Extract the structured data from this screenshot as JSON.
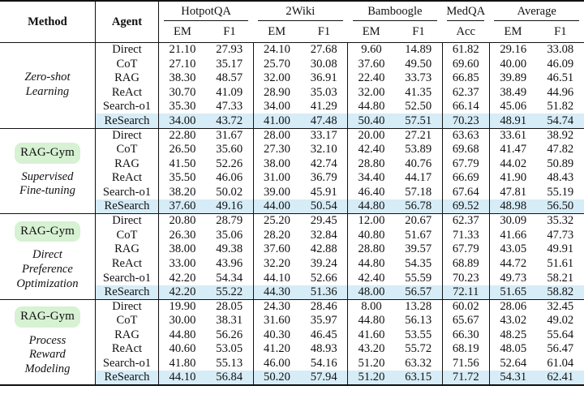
{
  "header": {
    "method": "Method",
    "agent": "Agent",
    "datasets": [
      {
        "name": "HotpotQA",
        "metrics": [
          "EM",
          "F1"
        ]
      },
      {
        "name": "2Wiki",
        "metrics": [
          "EM",
          "F1"
        ]
      },
      {
        "name": "Bamboogle",
        "metrics": [
          "EM",
          "F1"
        ]
      },
      {
        "name": "MedQA",
        "metrics": [
          "Acc"
        ]
      },
      {
        "name": "Average",
        "metrics": [
          "EM",
          "F1"
        ]
      }
    ]
  },
  "groups": [
    {
      "badge": "",
      "method_lines": [
        "Zero-shot",
        "Learning"
      ],
      "rows": [
        {
          "agent": "Direct",
          "values": [
            "21.10",
            "27.93",
            "24.10",
            "27.68",
            "9.60",
            "14.89",
            "61.82",
            "29.16",
            "33.08"
          ],
          "bold": [],
          "highlight": false
        },
        {
          "agent": "CoT",
          "values": [
            "27.10",
            "35.17",
            "25.70",
            "30.08",
            "37.60",
            "49.50",
            "69.60",
            "40.00",
            "46.09"
          ],
          "bold": [],
          "highlight": false
        },
        {
          "agent": "RAG",
          "values": [
            "38.30",
            "48.57",
            "32.00",
            "36.91",
            "22.40",
            "33.73",
            "66.85",
            "39.89",
            "46.51"
          ],
          "bold": [],
          "highlight": false
        },
        {
          "agent": "ReAct",
          "values": [
            "30.70",
            "41.09",
            "28.90",
            "35.03",
            "32.00",
            "41.35",
            "62.37",
            "38.49",
            "44.96"
          ],
          "bold": [],
          "highlight": false
        },
        {
          "agent": "Search-o1",
          "values": [
            "35.30",
            "47.33",
            "34.00",
            "41.29",
            "44.80",
            "52.50",
            "66.14",
            "45.06",
            "51.82"
          ],
          "bold": [],
          "highlight": false
        },
        {
          "agent": "ReSearch",
          "values": [
            "34.00",
            "43.72",
            "41.00",
            "47.48",
            "50.40",
            "57.51",
            "70.23",
            "48.91",
            "54.74"
          ],
          "bold": [],
          "highlight": true
        }
      ]
    },
    {
      "badge": "RAG-Gym",
      "method_lines": [
        "Supervised",
        "Fine-tuning"
      ],
      "rows": [
        {
          "agent": "Direct",
          "values": [
            "22.80",
            "31.67",
            "28.00",
            "33.17",
            "20.00",
            "27.21",
            "63.63",
            "33.61",
            "38.92"
          ],
          "bold": [],
          "highlight": false
        },
        {
          "agent": "CoT",
          "values": [
            "26.50",
            "35.60",
            "27.30",
            "32.10",
            "42.40",
            "53.89",
            "69.68",
            "41.47",
            "47.82"
          ],
          "bold": [],
          "highlight": false
        },
        {
          "agent": "RAG",
          "values": [
            "41.50",
            "52.26",
            "38.00",
            "42.74",
            "28.80",
            "40.76",
            "67.79",
            "44.02",
            "50.89"
          ],
          "bold": [],
          "highlight": false
        },
        {
          "agent": "ReAct",
          "values": [
            "35.50",
            "46.06",
            "31.00",
            "36.79",
            "34.40",
            "44.17",
            "66.69",
            "41.90",
            "48.43"
          ],
          "bold": [],
          "highlight": false
        },
        {
          "agent": "Search-o1",
          "values": [
            "38.20",
            "50.02",
            "39.00",
            "45.91",
            "46.40",
            "57.18",
            "67.64",
            "47.81",
            "55.19"
          ],
          "bold": [],
          "highlight": false
        },
        {
          "agent": "ReSearch",
          "values": [
            "37.60",
            "49.16",
            "44.00",
            "50.54",
            "44.80",
            "56.78",
            "69.52",
            "48.98",
            "56.50"
          ],
          "bold": [],
          "highlight": true
        }
      ]
    },
    {
      "badge": "RAG-Gym",
      "method_lines": [
        "Direct",
        "Preference",
        "Optimization"
      ],
      "rows": [
        {
          "agent": "Direct",
          "values": [
            "20.80",
            "28.79",
            "25.20",
            "29.45",
            "12.00",
            "20.67",
            "62.37",
            "30.09",
            "35.32"
          ],
          "bold": [],
          "highlight": false
        },
        {
          "agent": "CoT",
          "values": [
            "26.30",
            "35.06",
            "28.20",
            "32.84",
            "40.80",
            "51.67",
            "71.33",
            "41.66",
            "47.73"
          ],
          "bold": [],
          "highlight": false
        },
        {
          "agent": "RAG",
          "values": [
            "38.00",
            "49.38",
            "37.60",
            "42.88",
            "28.80",
            "39.57",
            "67.79",
            "43.05",
            "49.91"
          ],
          "bold": [],
          "highlight": false
        },
        {
          "agent": "ReAct",
          "values": [
            "33.00",
            "43.96",
            "32.20",
            "39.24",
            "44.80",
            "54.35",
            "68.89",
            "44.72",
            "51.61"
          ],
          "bold": [],
          "highlight": false
        },
        {
          "agent": "Search-o1",
          "values": [
            "42.20",
            "54.34",
            "44.10",
            "52.66",
            "42.40",
            "55.59",
            "70.23",
            "49.73",
            "58.21"
          ],
          "bold": [],
          "highlight": false
        },
        {
          "agent": "ReSearch",
          "values": [
            "42.20",
            "55.22",
            "44.30",
            "51.36",
            "48.00",
            "56.57",
            "72.11",
            "51.65",
            "58.82"
          ],
          "bold": [
            6
          ],
          "highlight": true
        }
      ]
    },
    {
      "badge": "RAG-Gym",
      "method_lines": [
        "Process",
        "Reward",
        "Modeling"
      ],
      "rows": [
        {
          "agent": "Direct",
          "values": [
            "19.90",
            "28.05",
            "24.30",
            "28.46",
            "8.00",
            "13.28",
            "60.02",
            "28.06",
            "32.45"
          ],
          "bold": [],
          "highlight": false
        },
        {
          "agent": "CoT",
          "values": [
            "30.00",
            "38.31",
            "31.60",
            "35.97",
            "44.80",
            "56.13",
            "65.67",
            "43.02",
            "49.02"
          ],
          "bold": [],
          "highlight": false
        },
        {
          "agent": "RAG",
          "values": [
            "44.80",
            "56.26",
            "40.30",
            "46.45",
            "41.60",
            "53.55",
            "66.30",
            "48.25",
            "55.64"
          ],
          "bold": [
            0
          ],
          "highlight": false
        },
        {
          "agent": "ReAct",
          "values": [
            "40.60",
            "53.05",
            "41.20",
            "48.93",
            "43.20",
            "55.72",
            "68.19",
            "48.05",
            "56.47"
          ],
          "bold": [],
          "highlight": false
        },
        {
          "agent": "Search-o1",
          "values": [
            "41.80",
            "55.13",
            "46.00",
            "54.16",
            "51.20",
            "63.32",
            "71.56",
            "52.64",
            "61.04"
          ],
          "bold": [
            4,
            5
          ],
          "highlight": false
        },
        {
          "agent": "ReSearch",
          "values": [
            "44.10",
            "56.84",
            "50.20",
            "57.94",
            "51.20",
            "63.15",
            "71.72",
            "54.31",
            "62.41"
          ],
          "bold": [
            1,
            2,
            3,
            4,
            7,
            8
          ],
          "highlight": true
        }
      ]
    }
  ],
  "colors": {
    "highlight_row": "#d6ecf6",
    "badge_bg": "#d7f1d3",
    "rule": "#111111"
  }
}
